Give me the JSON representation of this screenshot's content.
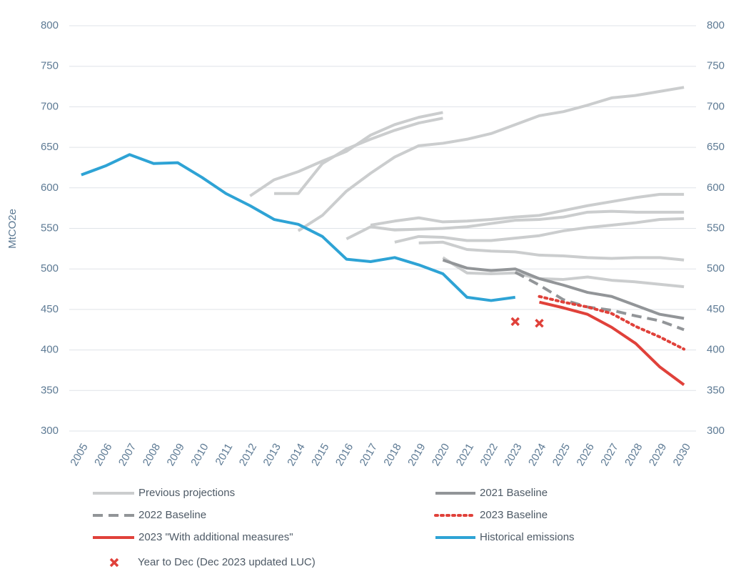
{
  "chart_data": {
    "type": "line",
    "y_label": "MtCO2e",
    "x": [
      2005,
      2006,
      2007,
      2008,
      2009,
      2010,
      2011,
      2012,
      2013,
      2014,
      2015,
      2016,
      2017,
      2018,
      2019,
      2020,
      2021,
      2022,
      2023,
      2024,
      2025,
      2026,
      2027,
      2028,
      2029,
      2030
    ],
    "ylim": [
      300,
      800
    ],
    "yticks": [
      300,
      350,
      400,
      450,
      500,
      550,
      600,
      650,
      700,
      750,
      800
    ],
    "right_axis": true,
    "grid": true,
    "previous_projections": {
      "name": "Previous projections",
      "color": "#cbcdce",
      "lines": [
        [
          null,
          null,
          null,
          null,
          null,
          null,
          null,
          590,
          610,
          620,
          633,
          645,
          665,
          678,
          687,
          693,
          null,
          null,
          null,
          null,
          null,
          null,
          null,
          null,
          null,
          null
        ],
        [
          null,
          null,
          null,
          null,
          null,
          null,
          null,
          null,
          593,
          593,
          630,
          648,
          660,
          671,
          680,
          686,
          null,
          null,
          null,
          null,
          null,
          null,
          null,
          null,
          null,
          null
        ],
        [
          null,
          null,
          null,
          null,
          null,
          null,
          null,
          null,
          null,
          547,
          566,
          596,
          618,
          638,
          652,
          655,
          660,
          667,
          678,
          689,
          694,
          702,
          711,
          714,
          719,
          724
        ],
        [
          null,
          null,
          null,
          null,
          null,
          null,
          null,
          null,
          null,
          null,
          null,
          537,
          552,
          548,
          549,
          550,
          552,
          556,
          560,
          561,
          564,
          570,
          571,
          570,
          570,
          570
        ],
        [
          null,
          null,
          null,
          null,
          null,
          null,
          null,
          null,
          null,
          null,
          null,
          null,
          554,
          559,
          563,
          558,
          559,
          561,
          564,
          566,
          572,
          578,
          583,
          588,
          592,
          592
        ],
        [
          null,
          null,
          null,
          null,
          null,
          null,
          null,
          null,
          null,
          null,
          null,
          null,
          null,
          533,
          540,
          539,
          535,
          535,
          538,
          541,
          547,
          551,
          554,
          557,
          561,
          562
        ],
        [
          null,
          null,
          null,
          null,
          null,
          null,
          null,
          null,
          null,
          null,
          null,
          null,
          null,
          null,
          532,
          533,
          524,
          522,
          521,
          517,
          516,
          514,
          513,
          514,
          514,
          511
        ],
        [
          null,
          null,
          null,
          null,
          null,
          null,
          null,
          null,
          null,
          null,
          null,
          null,
          null,
          null,
          null,
          514,
          495,
          494,
          495,
          488,
          487,
          490,
          486,
          484,
          481,
          478
        ]
      ]
    },
    "series": [
      {
        "name": "2021 Baseline",
        "color": "#929598",
        "style": "solid",
        "values": [
          null,
          null,
          null,
          null,
          null,
          null,
          null,
          null,
          null,
          null,
          null,
          null,
          null,
          null,
          null,
          511,
          501,
          498,
          500,
          488,
          480,
          471,
          466,
          455,
          444,
          439
        ]
      },
      {
        "name": "2022 Baseline",
        "color": "#929598",
        "style": "dashed",
        "values": [
          null,
          null,
          null,
          null,
          null,
          null,
          null,
          null,
          null,
          null,
          null,
          null,
          null,
          null,
          null,
          null,
          null,
          null,
          496,
          480,
          462,
          453,
          449,
          442,
          436,
          425
        ]
      },
      {
        "name": "2023 Baseline",
        "color": "#e0413a",
        "style": "dotted",
        "values": [
          null,
          null,
          null,
          null,
          null,
          null,
          null,
          null,
          null,
          null,
          null,
          null,
          null,
          null,
          null,
          null,
          null,
          null,
          null,
          466,
          459,
          453,
          445,
          429,
          416,
          401
        ]
      },
      {
        "name": "2023 \"With additional measures\"",
        "color": "#e0413a",
        "style": "solid",
        "values": [
          null,
          null,
          null,
          null,
          null,
          null,
          null,
          null,
          null,
          null,
          null,
          null,
          null,
          null,
          null,
          null,
          null,
          null,
          null,
          459,
          452,
          444,
          428,
          408,
          379,
          357
        ]
      },
      {
        "name": "Historical emissions",
        "color": "#2ea3d5",
        "style": "solid",
        "values": [
          616,
          627,
          641,
          630,
          631,
          613,
          593,
          578,
          561,
          555,
          540,
          512,
          509,
          514,
          505,
          494,
          465,
          461,
          465,
          null,
          null,
          null,
          null,
          null,
          null,
          null
        ]
      },
      {
        "name": "Year to Dec (Dec 2023 updated LUC)",
        "color": "#e0413a",
        "style": "cross",
        "values": [
          null,
          null,
          null,
          null,
          null,
          null,
          null,
          null,
          null,
          null,
          null,
          null,
          null,
          null,
          null,
          null,
          null,
          null,
          435,
          433,
          null,
          null,
          null,
          null,
          null,
          null
        ]
      }
    ]
  }
}
